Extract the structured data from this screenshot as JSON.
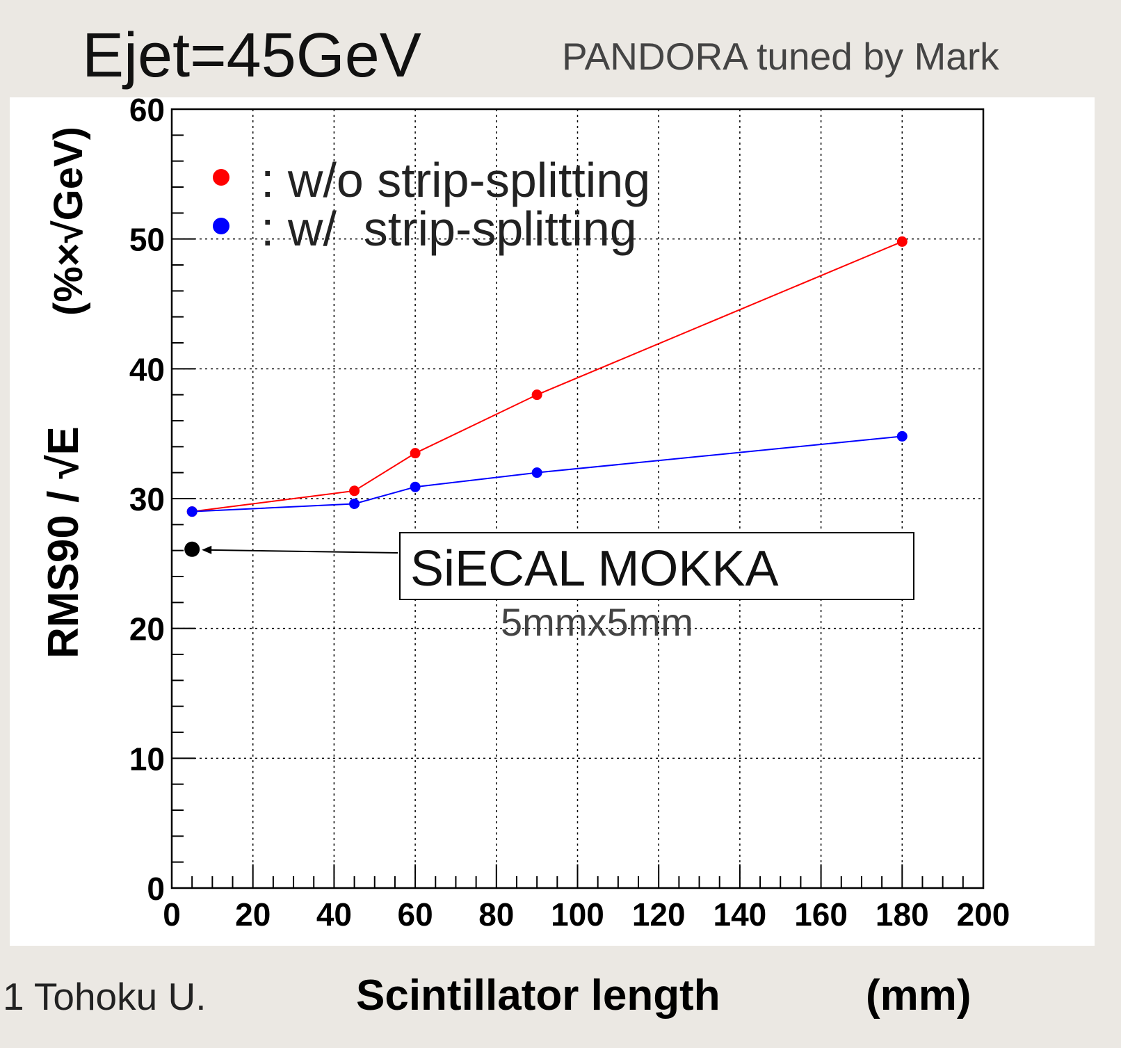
{
  "chart_data": {
    "type": "line",
    "title": "Ejet=45GeV",
    "subtitle": "PANDORA tuned by Mark",
    "x_label": "Scintillator length",
    "x_unit": "(mm)",
    "y_label": "RMS90 / √E",
    "y_unit": "(%×√GeV)",
    "footer": "1 Tohoku U.",
    "series": [
      {
        "name": ": w/o strip-splitting",
        "color": "#ff0000",
        "x": [
          5,
          45,
          60,
          90,
          180
        ],
        "values": [
          29,
          30.6,
          33.5,
          38,
          49.8
        ]
      },
      {
        "name": ": w/  strip-splitting",
        "color": "#0000ff",
        "x": [
          5,
          45,
          60,
          90,
          180
        ],
        "values": [
          29,
          29.6,
          30.9,
          32,
          34.8
        ]
      }
    ],
    "reference": {
      "label": "SiECAL MOKKA",
      "sublabel": "5mmx5mm",
      "x": 5,
      "y": 26.1,
      "color": "#000000"
    },
    "xlim": [
      0,
      200
    ],
    "xticks": [
      0,
      20,
      40,
      60,
      80,
      100,
      120,
      140,
      160,
      180,
      200
    ],
    "ylim": [
      0,
      60
    ],
    "yticks": [
      0,
      10,
      20,
      30,
      40,
      50,
      60
    ],
    "grid": true
  }
}
